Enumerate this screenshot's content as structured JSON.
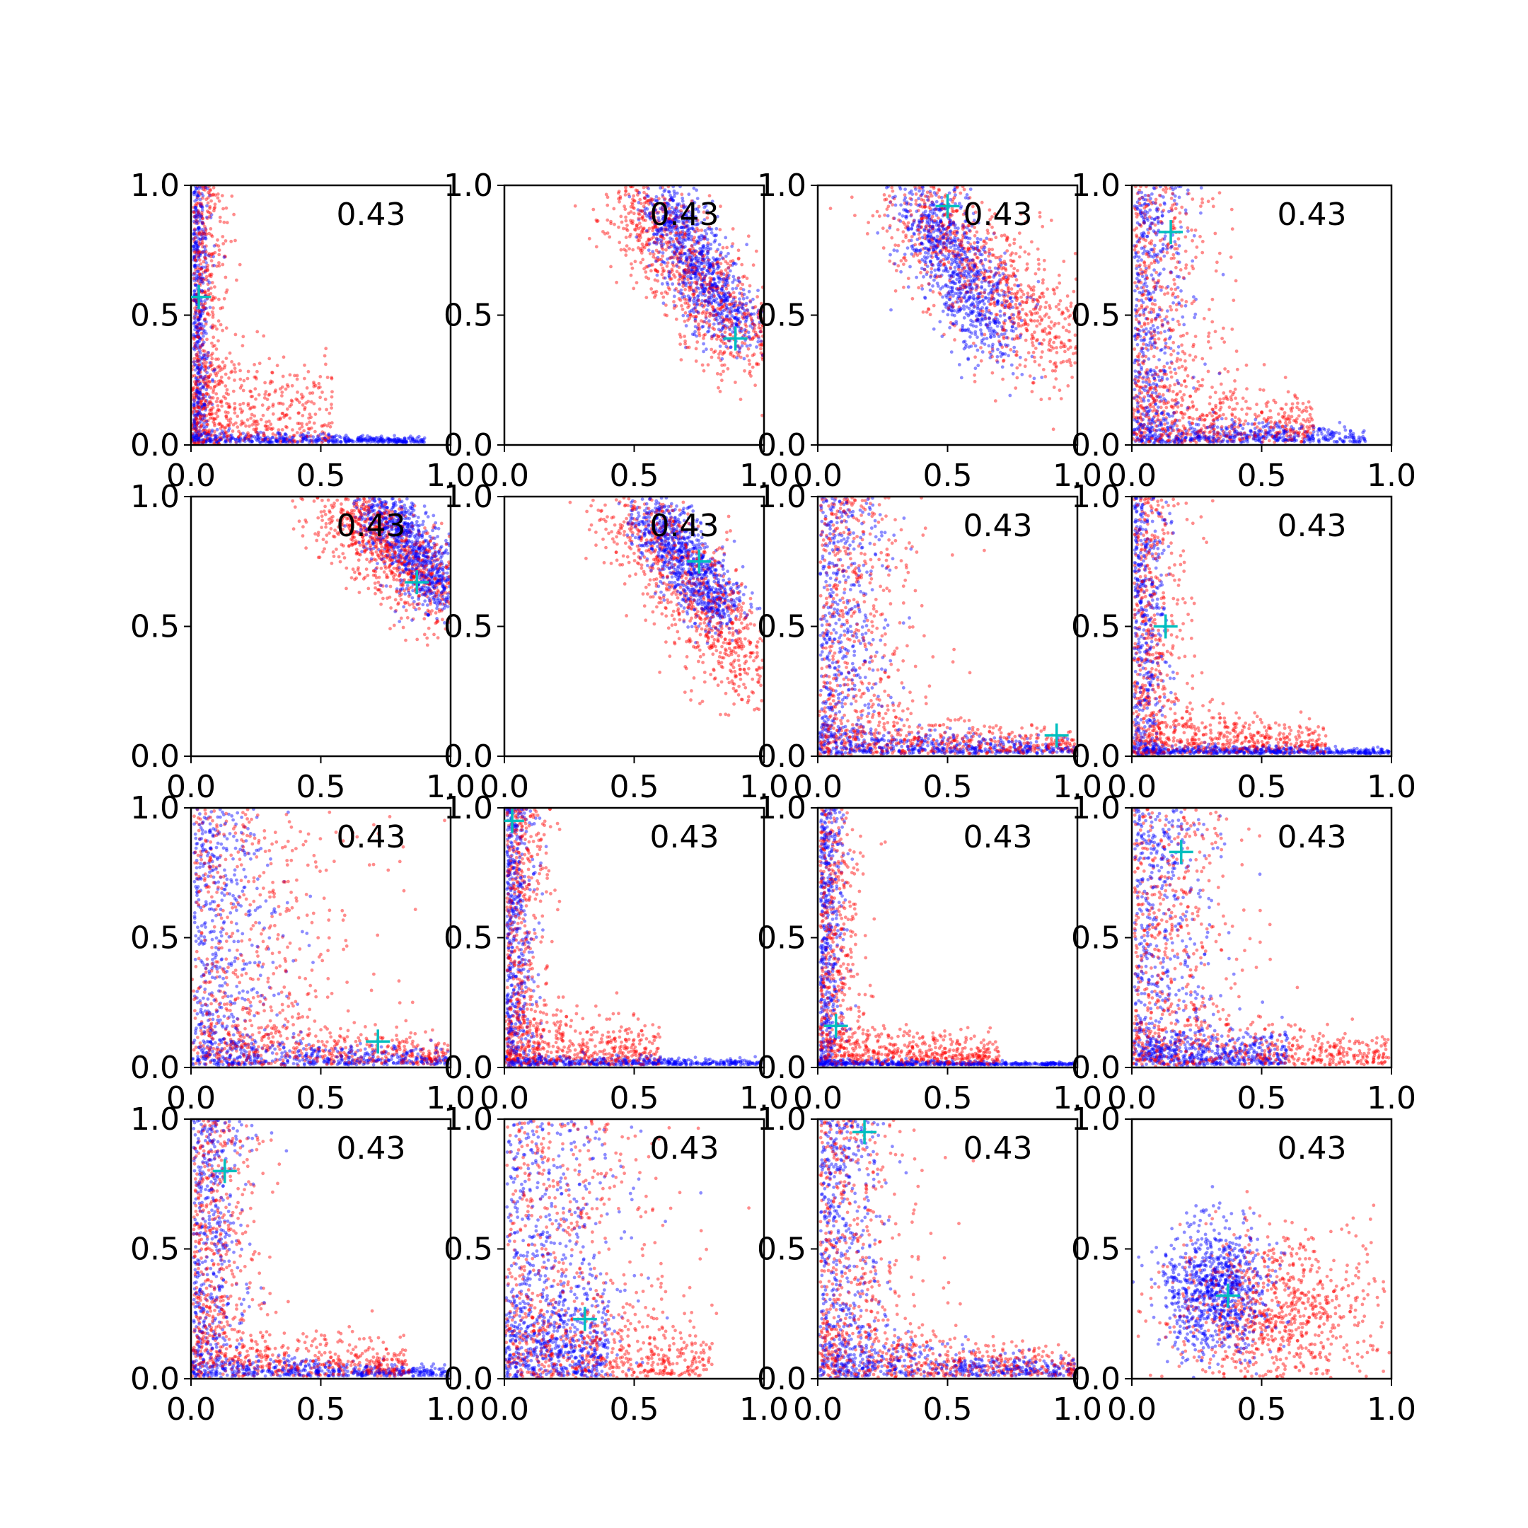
{
  "colors": {
    "series_a": "#ff0000",
    "series_b": "#0000ff",
    "marker": "#00bfbf"
  },
  "chart_data": {
    "type": "scatter",
    "layout": "4x4 grid of scatter panels",
    "xlim": [
      0,
      1
    ],
    "ylim": [
      0,
      1
    ],
    "x_ticks": [
      "0.0",
      "0.5",
      "1.0"
    ],
    "y_ticks": [
      "0.0",
      "0.5",
      "1.0"
    ],
    "grid": false,
    "legend": "none",
    "marker_symbol": "+",
    "panels": [
      {
        "annotation": "0.43",
        "marker": [
          0.03,
          0.57
        ],
        "shape": "L",
        "red": {
          "xs": 0.06,
          "ys": 0.06,
          "tail": 0.55,
          "ye": 0.2
        },
        "blue": {
          "xs": 0.03,
          "ys": 0.03,
          "tail": 0.9,
          "ye": 0.02
        }
      },
      {
        "annotation": "0.43",
        "marker": [
          0.89,
          0.41
        ],
        "shape": "band",
        "red": {
          "x0": 0.45,
          "y0": 0.98,
          "x1": 0.98,
          "y1": 0.35,
          "w": 0.09
        },
        "blue": {
          "x0": 0.6,
          "y0": 0.95,
          "x1": 0.9,
          "y1": 0.42,
          "w": 0.06
        }
      },
      {
        "annotation": "0.43",
        "marker": [
          0.5,
          0.92
        ],
        "shape": "band",
        "red": {
          "x0": 0.35,
          "y0": 0.95,
          "x1": 0.98,
          "y1": 0.35,
          "w": 0.11
        },
        "blue": {
          "x0": 0.4,
          "y0": 0.95,
          "x1": 0.7,
          "y1": 0.4,
          "w": 0.08
        }
      },
      {
        "annotation": "0.43",
        "marker": [
          0.15,
          0.82
        ],
        "shape": "L",
        "red": {
          "xs": 0.15,
          "ys": 0.06,
          "tail": 0.7,
          "ye": 0.15
        },
        "blue": {
          "xs": 0.1,
          "ys": 0.05,
          "tail": 0.9,
          "ye": 0.05
        }
      },
      {
        "annotation": "0.43",
        "marker": [
          0.87,
          0.67
        ],
        "shape": "band",
        "red": {
          "x0": 0.55,
          "y0": 0.98,
          "x1": 0.99,
          "y1": 0.6,
          "w": 0.08
        },
        "blue": {
          "x0": 0.7,
          "y0": 0.98,
          "x1": 0.99,
          "y1": 0.62,
          "w": 0.06
        }
      },
      {
        "annotation": "0.43",
        "marker": [
          0.75,
          0.75
        ],
        "shape": "band",
        "red": {
          "x0": 0.45,
          "y0": 0.98,
          "x1": 0.99,
          "y1": 0.28,
          "w": 0.09
        },
        "blue": {
          "x0": 0.55,
          "y0": 0.95,
          "x1": 0.85,
          "y1": 0.55,
          "w": 0.06
        }
      },
      {
        "annotation": "0.43",
        "marker": [
          0.92,
          0.08
        ],
        "shape": "L",
        "red": {
          "xs": 0.18,
          "ys": 0.1,
          "tail": 0.99,
          "ye": 0.1
        },
        "blue": {
          "xs": 0.12,
          "ys": 0.06,
          "tail": 0.99,
          "ye": 0.05
        }
      },
      {
        "annotation": "0.43",
        "marker": [
          0.13,
          0.5
        ],
        "shape": "L",
        "red": {
          "xs": 0.1,
          "ys": 0.06,
          "tail": 0.75,
          "ye": 0.1
        },
        "blue": {
          "xs": 0.06,
          "ys": 0.03,
          "tail": 0.99,
          "ye": 0.02
        }
      },
      {
        "annotation": "0.43",
        "marker": [
          0.72,
          0.1
        ],
        "shape": "L",
        "red": {
          "xs": 0.3,
          "ys": 0.2,
          "tail": 0.99,
          "ye": 0.12
        },
        "blue": {
          "xs": 0.15,
          "ys": 0.1,
          "tail": 0.99,
          "ye": 0.06
        }
      },
      {
        "annotation": "0.43",
        "marker": [
          0.03,
          0.95
        ],
        "shape": "L",
        "red": {
          "xs": 0.08,
          "ys": 0.05,
          "tail": 0.6,
          "ye": 0.12
        },
        "blue": {
          "xs": 0.05,
          "ys": 0.03,
          "tail": 0.99,
          "ye": 0.02
        }
      },
      {
        "annotation": "0.43",
        "marker": [
          0.07,
          0.16
        ],
        "shape": "L",
        "red": {
          "xs": 0.08,
          "ys": 0.05,
          "tail": 0.7,
          "ye": 0.08
        },
        "blue": {
          "xs": 0.04,
          "ys": 0.02,
          "tail": 0.99,
          "ye": 0.01
        }
      },
      {
        "annotation": "0.43",
        "marker": [
          0.19,
          0.83
        ],
        "shape": "L",
        "red": {
          "xs": 0.2,
          "ys": 0.12,
          "tail": 0.99,
          "ye": 0.12
        },
        "blue": {
          "xs": 0.15,
          "ys": 0.08,
          "tail": 0.6,
          "ye": 0.08
        }
      },
      {
        "annotation": "0.43",
        "marker": [
          0.13,
          0.8
        ],
        "shape": "L",
        "red": {
          "xs": 0.12,
          "ys": 0.08,
          "tail": 0.85,
          "ye": 0.12
        },
        "blue": {
          "xs": 0.1,
          "ys": 0.05,
          "tail": 0.99,
          "ye": 0.04
        }
      },
      {
        "annotation": "0.43",
        "marker": [
          0.31,
          0.23
        ],
        "shape": "L",
        "red": {
          "xs": 0.28,
          "ys": 0.18,
          "tail": 0.8,
          "ye": 0.18
        },
        "blue": {
          "xs": 0.22,
          "ys": 0.22,
          "tail": 0.4,
          "ye": 0.2
        }
      },
      {
        "annotation": "0.43",
        "marker": [
          0.18,
          0.95
        ],
        "shape": "L",
        "red": {
          "xs": 0.18,
          "ys": 0.12,
          "tail": 0.99,
          "ye": 0.12
        },
        "blue": {
          "xs": 0.12,
          "ys": 0.08,
          "tail": 0.99,
          "ye": 0.08
        }
      },
      {
        "annotation": "0.43",
        "marker": [
          0.37,
          0.32
        ],
        "shape": "cloud",
        "red": {
          "cx": 0.55,
          "cy": 0.25,
          "sx": 0.2,
          "sy": 0.16
        },
        "blue": {
          "cx": 0.32,
          "cy": 0.35,
          "sx": 0.1,
          "sy": 0.12
        }
      }
    ]
  }
}
